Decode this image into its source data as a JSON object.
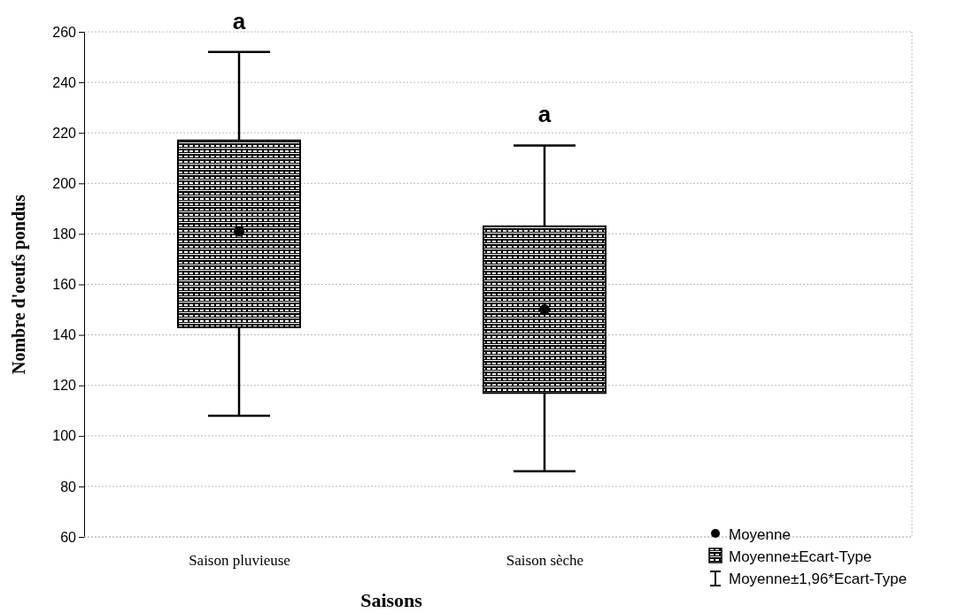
{
  "chart_data": {
    "type": "box",
    "xlabel": "Saisons",
    "ylabel": "Nombre d'oeufs pondus",
    "categories": [
      "Saison pluvieuse",
      "Saison sèche"
    ],
    "boxes": [
      {
        "low": 108,
        "q1": 143,
        "median": 181,
        "q3": 217,
        "high": 252
      },
      {
        "low": 86,
        "q1": 117,
        "median": 150,
        "q3": 183,
        "high": 215
      }
    ],
    "color": "#000000",
    "ylim": [
      60,
      260
    ],
    "yticks": [
      60,
      80,
      100,
      120,
      140,
      160,
      180,
      200,
      220,
      240,
      260
    ],
    "grid": "y",
    "annotations": [
      "a",
      "a",
      "Moyenne",
      "Moyenne±Ecart-Type",
      "Moyenne±1,96*Ecart-Type"
    ]
  }
}
